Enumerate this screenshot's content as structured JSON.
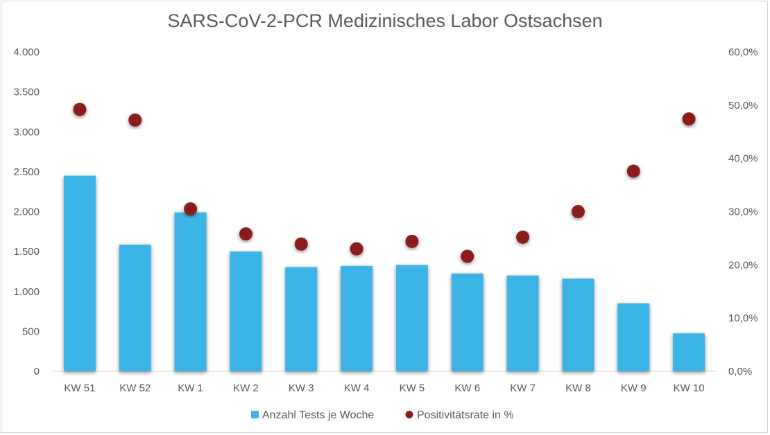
{
  "chart_data": {
    "type": "bar",
    "title": "SARS-CoV-2-PCR Medizinisches Labor Ostsachsen",
    "categories": [
      "KW 51",
      "KW 52",
      "KW 1",
      "KW 2",
      "KW 3",
      "KW 4",
      "KW 5",
      "KW 6",
      "KW 7",
      "KW 8",
      "KW 9",
      "KW 10"
    ],
    "series": [
      {
        "name": "Anzahl Tests je Woche",
        "type": "bar",
        "axis": "left",
        "color": "#3cb4e6",
        "values": [
          2450,
          1585,
          1990,
          1500,
          1305,
          1320,
          1330,
          1225,
          1200,
          1160,
          850,
          475
        ]
      },
      {
        "name": "Positivitätsrate in %",
        "type": "scatter",
        "axis": "right",
        "color": "#8b1a1a",
        "values": [
          49.2,
          47.2,
          30.5,
          25.8,
          23.9,
          23.0,
          24.4,
          21.6,
          25.2,
          30.0,
          37.6,
          47.4
        ]
      }
    ],
    "y_left": {
      "ylim": [
        0,
        4000
      ],
      "ticks": [
        0,
        500,
        1000,
        1500,
        2000,
        2500,
        3000,
        3500,
        4000
      ],
      "tick_labels": [
        "0",
        "500",
        "1.000",
        "1.500",
        "2.000",
        "2.500",
        "3.000",
        "3.500",
        "4.000"
      ]
    },
    "y_right": {
      "ylim": [
        0,
        60
      ],
      "ticks": [
        0,
        10,
        20,
        30,
        40,
        50,
        60
      ],
      "tick_labels": [
        "0,0%",
        "10,0%",
        "20,0%",
        "30,0%",
        "40,0%",
        "50,0%",
        "60,0%"
      ]
    },
    "grid": false,
    "legend_position": "bottom"
  }
}
